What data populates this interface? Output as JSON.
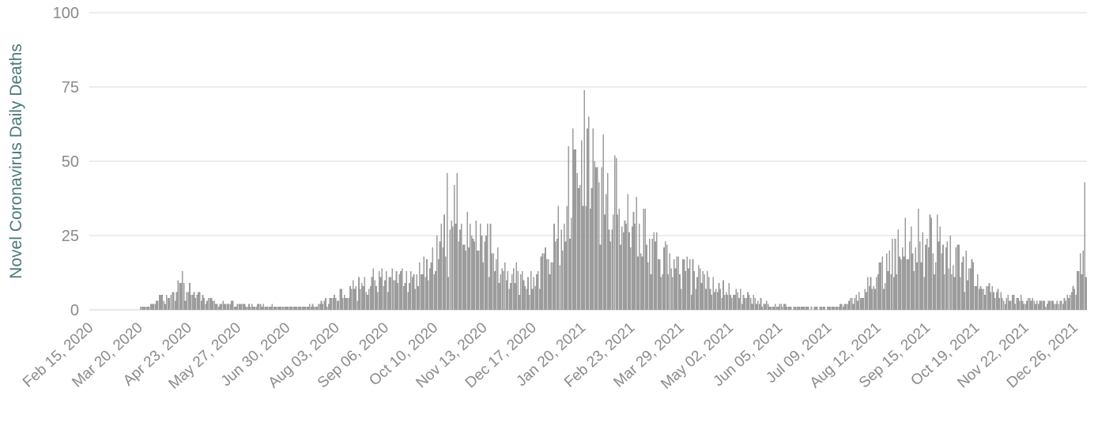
{
  "chart_data": {
    "type": "bar",
    "title": "",
    "xlabel": "",
    "ylabel": "Novel Coronavirus Daily Deaths",
    "ylim": [
      0,
      100
    ],
    "yticks": [
      0,
      25,
      50,
      75,
      100
    ],
    "x_start_label": "Feb 15, 2020",
    "x_tick_labels": [
      "Feb 15, 2020",
      "Mar 20, 2020",
      "Apr 23, 2020",
      "May 27, 2020",
      "Jun 30, 2020",
      "Aug 03, 2020",
      "Sep 06, 2020",
      "Oct 10, 2020",
      "Nov 13, 2020",
      "Dec 17, 2020",
      "Jan 20, 2021",
      "Feb 23, 2021",
      "Mar 29, 2021",
      "May 02, 2021",
      "Jun 05, 2021",
      "Jul 09, 2021",
      "Aug 12, 2021",
      "Sep 15, 2021",
      "Oct 19, 2021",
      "Nov 22, 2021",
      "Dec 26, 2021"
    ],
    "tick_interval_days": 34,
    "num_days": 690,
    "anchors": [
      [
        0,
        0
      ],
      [
        25,
        0
      ],
      [
        33,
        0.4
      ],
      [
        40,
        1.5
      ],
      [
        46,
        3
      ],
      [
        52,
        6
      ],
      [
        58,
        8
      ],
      [
        63,
        10
      ],
      [
        68,
        8
      ],
      [
        73,
        6
      ],
      [
        78,
        4
      ],
      [
        84,
        3
      ],
      [
        90,
        2.5
      ],
      [
        97,
        2.5
      ],
      [
        104,
        2
      ],
      [
        111,
        1.5
      ],
      [
        118,
        1.6
      ],
      [
        125,
        1.4
      ],
      [
        132,
        1.2
      ],
      [
        139,
        1
      ],
      [
        146,
        1
      ],
      [
        153,
        1.6
      ],
      [
        160,
        2.5
      ],
      [
        167,
        4
      ],
      [
        174,
        6
      ],
      [
        181,
        8
      ],
      [
        188,
        10
      ],
      [
        195,
        11
      ],
      [
        202,
        12
      ],
      [
        209,
        12
      ],
      [
        216,
        12
      ],
      [
        223,
        11
      ],
      [
        229,
        14
      ],
      [
        236,
        18
      ],
      [
        243,
        24
      ],
      [
        250,
        32
      ],
      [
        256,
        37
      ],
      [
        262,
        35
      ],
      [
        268,
        30
      ],
      [
        274,
        26
      ],
      [
        280,
        20
      ],
      [
        286,
        14
      ],
      [
        292,
        13
      ],
      [
        299,
        12
      ],
      [
        306,
        12
      ],
      [
        313,
        16
      ],
      [
        320,
        24
      ],
      [
        327,
        36
      ],
      [
        333,
        48
      ],
      [
        338,
        56
      ],
      [
        343,
        60
      ],
      [
        348,
        57
      ],
      [
        354,
        52
      ],
      [
        360,
        46
      ],
      [
        367,
        40
      ],
      [
        374,
        36
      ],
      [
        381,
        30
      ],
      [
        388,
        25
      ],
      [
        395,
        21
      ],
      [
        402,
        18
      ],
      [
        408,
        16
      ],
      [
        415,
        14
      ],
      [
        422,
        12
      ],
      [
        429,
        11
      ],
      [
        436,
        9
      ],
      [
        442,
        8
      ],
      [
        449,
        6
      ],
      [
        456,
        4.5
      ],
      [
        463,
        3
      ],
      [
        470,
        2.2
      ],
      [
        477,
        1.6
      ],
      [
        484,
        1.2
      ],
      [
        491,
        1
      ],
      [
        498,
        0.8
      ],
      [
        505,
        0.7
      ],
      [
        512,
        0.9
      ],
      [
        519,
        1.6
      ],
      [
        526,
        3
      ],
      [
        533,
        6
      ],
      [
        540,
        10
      ],
      [
        547,
        14
      ],
      [
        554,
        19
      ],
      [
        561,
        24
      ],
      [
        568,
        27
      ],
      [
        574,
        29
      ],
      [
        580,
        28
      ],
      [
        586,
        26
      ],
      [
        592,
        23
      ],
      [
        599,
        19
      ],
      [
        606,
        16
      ],
      [
        612,
        13
      ],
      [
        619,
        10
      ],
      [
        626,
        7
      ],
      [
        633,
        5.5
      ],
      [
        640,
        4.5
      ],
      [
        646,
        4
      ],
      [
        653,
        3
      ],
      [
        660,
        2.5
      ],
      [
        666,
        2.5
      ],
      [
        671,
        3
      ],
      [
        675,
        4
      ],
      [
        679,
        6
      ],
      [
        682,
        9
      ],
      [
        684,
        14
      ],
      [
        686,
        22
      ],
      [
        688,
        34
      ],
      [
        689,
        28
      ]
    ],
    "spikes": [
      [
        64,
        13
      ],
      [
        247,
        46
      ],
      [
        254,
        46
      ],
      [
        342,
        74
      ],
      [
        573,
        34
      ],
      [
        688,
        43
      ]
    ],
    "noise": {
      "seed": 1337,
      "min_factor": 0.55,
      "max_factor": 1.25,
      "weekly_dip_offset": 3,
      "weekly_dip_factor": 0.62
    },
    "bar_color": "#9c9c9c",
    "grid_color": "#d9d9d9",
    "axis_line_color": "#cfcfcf",
    "tick_label_color": "#8a8a8a",
    "axis_label_color": "#477a76",
    "legend": "none",
    "grid": "horizontal"
  }
}
